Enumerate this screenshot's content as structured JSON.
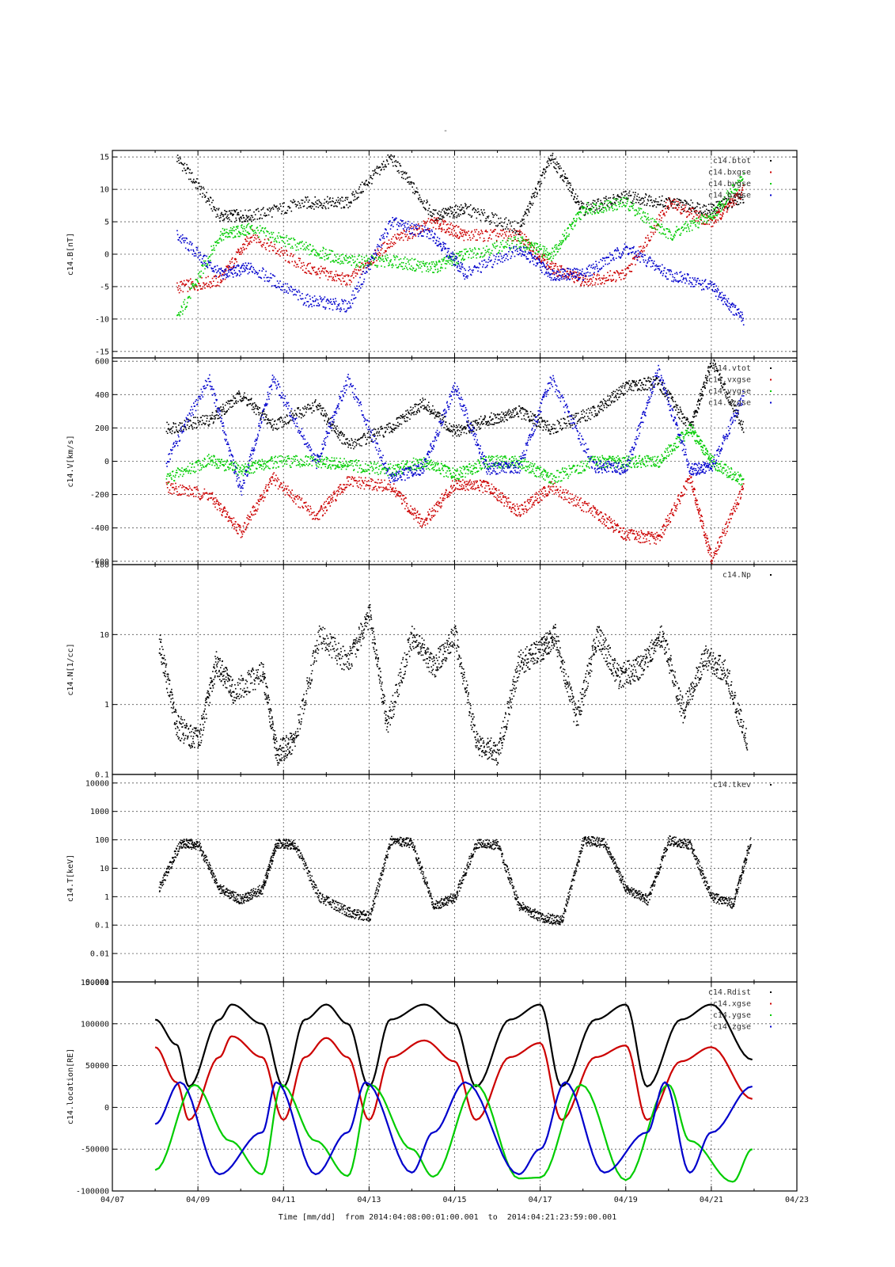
{
  "figure": {
    "top_mark": "-",
    "xlabel": "Time [mm/dd]  from 2014:04:08:00:01:00.001  to  2014:04:21:23:59:00.001"
  },
  "colors": {
    "black": "#000000",
    "red": "#cc0000",
    "green": "#00cc00",
    "blue": "#0000cc"
  },
  "chart_data": [
    {
      "type": "scatter",
      "ylabel": "c14.B[nT]",
      "ylim": [
        -16,
        16
      ],
      "yticks": [
        15,
        10,
        5,
        0,
        -5,
        -10,
        -15
      ],
      "xlim": [
        "04/07",
        "04/23"
      ],
      "xtick_labels": [],
      "legend": "top-right",
      "series": [
        {
          "name": "c14.btot",
          "color": "#000000",
          "x": [
            "04/08 12:00",
            "04/09 12:00",
            "04/10 06:00",
            "04/11 12:00",
            "04/12 12:00",
            "04/13 12:00",
            "04/14 12:00",
            "04/15 06:00",
            "04/16 12:00",
            "04/17 06:00",
            "04/18 00:00",
            "04/19 00:00",
            "04/20 00:00",
            "04/21 00:00",
            "04/21 18:00"
          ],
          "y": [
            15,
            6,
            6,
            8,
            8,
            15,
            6,
            7,
            4,
            15,
            7,
            9,
            8,
            7,
            9
          ]
        },
        {
          "name": "c14.bxgse",
          "color": "#cc0000",
          "x": [
            "04/08 12:00",
            "04/09 12:00",
            "04/10 06:00",
            "04/11 12:00",
            "04/12 12:00",
            "04/13 12:00",
            "04/14 12:00",
            "04/15 06:00",
            "04/16 12:00",
            "04/17 06:00",
            "04/18 00:00",
            "04/19 00:00",
            "04/20 00:00",
            "04/21 00:00",
            "04/21 18:00"
          ],
          "y": [
            -5,
            -4,
            3,
            -2,
            -4,
            2,
            5,
            3,
            3,
            -2,
            -4,
            -3,
            8,
            5,
            10
          ]
        },
        {
          "name": "c14.bygse",
          "color": "#00cc00",
          "x": [
            "04/08 12:00",
            "04/09 12:00",
            "04/10 06:00",
            "04/11 12:00",
            "04/12 12:00",
            "04/13 12:00",
            "04/14 12:00",
            "04/15 06:00",
            "04/16 12:00",
            "04/17 06:00",
            "04/18 00:00",
            "04/19 00:00",
            "04/20 00:00",
            "04/21 00:00",
            "04/21 18:00"
          ],
          "y": [
            -10,
            3,
            4,
            1,
            -1,
            -1,
            -2,
            0,
            2,
            0,
            7,
            8,
            3,
            6,
            12
          ]
        },
        {
          "name": "c14.bzgse",
          "color": "#0000cc",
          "x": [
            "04/08 12:00",
            "04/09 12:00",
            "04/10 06:00",
            "04/11 12:00",
            "04/12 12:00",
            "04/13 12:00",
            "04/14 12:00",
            "04/15 06:00",
            "04/16 12:00",
            "04/17 06:00",
            "04/18 00:00",
            "04/19 00:00",
            "04/20 00:00",
            "04/21 00:00",
            "04/21 18:00"
          ],
          "y": [
            3,
            -3,
            -2,
            -7,
            -8,
            5,
            3,
            -3,
            1,
            -3,
            -3,
            1,
            -3,
            -5,
            -10
          ]
        }
      ]
    },
    {
      "type": "scatter",
      "ylabel": "c14.V[km/s]",
      "ylim": [
        -620,
        620
      ],
      "yticks": [
        600,
        400,
        200,
        0,
        -200,
        -400,
        -600
      ],
      "xlim": [
        "04/07",
        "04/23"
      ],
      "xtick_labels": [],
      "legend": "top-right",
      "series": [
        {
          "name": "c14.vtot",
          "color": "#000000",
          "x": [
            "04/08 06:00",
            "04/09 06:00",
            "04/10 00:00",
            "04/10 18:00",
            "04/11 18:00",
            "04/12 12:00",
            "04/13 12:00",
            "04/14 06:00",
            "04/15 00:00",
            "04/15 18:00",
            "04/16 12:00",
            "04/17 06:00",
            "04/18 06:00",
            "04/19 00:00",
            "04/19 18:00",
            "04/20 12:00",
            "04/21 00:00",
            "04/21 18:00"
          ],
          "y": [
            200,
            250,
            400,
            220,
            340,
            100,
            200,
            350,
            180,
            250,
            300,
            200,
            300,
            450,
            480,
            200,
            600,
            200
          ]
        },
        {
          "name": "c14.vxgse",
          "color": "#cc0000",
          "x": [
            "04/08 06:00",
            "04/09 06:00",
            "04/10 00:00",
            "04/10 18:00",
            "04/11 18:00",
            "04/12 12:00",
            "04/13 12:00",
            "04/14 06:00",
            "04/15 00:00",
            "04/15 18:00",
            "04/16 12:00",
            "04/17 06:00",
            "04/18 06:00",
            "04/19 00:00",
            "04/19 18:00",
            "04/20 12:00",
            "04/21 00:00",
            "04/21 18:00"
          ],
          "y": [
            -150,
            -200,
            -420,
            -100,
            -330,
            -120,
            -150,
            -370,
            -130,
            -150,
            -300,
            -150,
            -300,
            -440,
            -460,
            -100,
            -590,
            -150
          ]
        },
        {
          "name": "c14.vygse",
          "color": "#00cc00",
          "x": [
            "04/08 06:00",
            "04/09 06:00",
            "04/10 00:00",
            "04/10 18:00",
            "04/11 18:00",
            "04/12 12:00",
            "04/13 12:00",
            "04/14 06:00",
            "04/15 00:00",
            "04/15 18:00",
            "04/16 12:00",
            "04/17 06:00",
            "04/18 06:00",
            "04/19 00:00",
            "04/19 18:00",
            "04/20 12:00",
            "04/21 00:00",
            "04/21 18:00"
          ],
          "y": [
            -100,
            10,
            -50,
            0,
            0,
            -20,
            -50,
            0,
            -80,
            0,
            0,
            -100,
            0,
            0,
            0,
            200,
            0,
            -120
          ]
        },
        {
          "name": "c14.vzgse",
          "color": "#0000cc",
          "x": [
            "04/08 06:00",
            "04/09 06:00",
            "04/10 00:00",
            "04/10 18:00",
            "04/11 18:00",
            "04/12 12:00",
            "04/13 12:00",
            "04/14 06:00",
            "04/15 00:00",
            "04/15 18:00",
            "04/16 12:00",
            "04/17 06:00",
            "04/18 06:00",
            "04/19 00:00",
            "04/19 18:00",
            "04/20 12:00",
            "04/21 00:00",
            "04/21 18:00"
          ],
          "y": [
            0,
            500,
            -180,
            500,
            -10,
            500,
            -100,
            -40,
            450,
            -40,
            -30,
            500,
            -30,
            -40,
            550,
            -50,
            -30,
            400
          ]
        }
      ]
    },
    {
      "type": "scatter",
      "ylabel": "c14.N[1/cc]",
      "yscale": "log",
      "ylim": [
        0.1,
        100
      ],
      "yticks": [
        100,
        10,
        1,
        0.1
      ],
      "xlim": [
        "04/07",
        "04/23"
      ],
      "xtick_labels": [],
      "legend": "top-right",
      "series": [
        {
          "name": "c14.Np",
          "color": "#000000",
          "x": [
            "04/08 02:00",
            "04/08 12:00",
            "04/09 00:00",
            "04/09 10:00",
            "04/09 20:00",
            "04/10 12:00",
            "04/10 20:00",
            "04/11 06:00",
            "04/11 20:00",
            "04/12 12:00",
            "04/13 00:00",
            "04/13 10:00",
            "04/14 00:00",
            "04/14 12:00",
            "04/15 00:00",
            "04/15 12:00",
            "04/16 00:00",
            "04/16 12:00",
            "04/17 00:00",
            "04/17 08:00",
            "04/17 20:00",
            "04/18 08:00",
            "04/18 20:00",
            "04/19 08:00",
            "04/19 20:00",
            "04/20 08:00",
            "04/20 20:00",
            "04/21 08:00",
            "04/21 20:00"
          ],
          "y": [
            8,
            0.5,
            0.3,
            4,
            1.5,
            3,
            0.2,
            0.3,
            10,
            4,
            20,
            0.5,
            10,
            3.5,
            10,
            0.3,
            0.2,
            4,
            6,
            10,
            0.6,
            10,
            2.5,
            3.5,
            10,
            0.8,
            5,
            3,
            0.3
          ]
        }
      ]
    },
    {
      "type": "scatter",
      "ylabel": "c14.T[keV]",
      "yscale": "log",
      "ylim": [
        0.001,
        20000
      ],
      "yticks": [
        10000,
        1000,
        100,
        10,
        1,
        0.1,
        0.01,
        0.001
      ],
      "xlim": [
        "04/07",
        "04/23"
      ],
      "xtick_labels": [],
      "legend": "top-right",
      "series": [
        {
          "name": "c14.tkev",
          "color": "#000000",
          "x": [
            "04/08 02:00",
            "04/08 14:00",
            "04/09 00:00",
            "04/09 12:00",
            "04/10 00:00",
            "04/10 12:00",
            "04/10 20:00",
            "04/11 06:00",
            "04/11 20:00",
            "04/12 12:00",
            "04/13 00:00",
            "04/13 12:00",
            "04/14 00:00",
            "04/14 12:00",
            "04/15 00:00",
            "04/15 12:00",
            "04/16 00:00",
            "04/16 12:00",
            "04/17 00:00",
            "04/17 12:00",
            "04/18 00:00",
            "04/18 12:00",
            "04/19 00:00",
            "04/19 12:00",
            "04/20 00:00",
            "04/20 12:00",
            "04/21 00:00",
            "04/21 12:00",
            "04/21 22:00"
          ],
          "y": [
            2,
            80,
            70,
            2,
            0.8,
            2,
            80,
            70,
            1,
            0.3,
            0.2,
            100,
            80,
            0.5,
            1,
            80,
            70,
            0.5,
            0.2,
            0.15,
            100,
            80,
            2,
            0.8,
            100,
            70,
            1,
            0.6,
            100
          ]
        }
      ]
    },
    {
      "type": "line",
      "ylabel": "c14.location[RE]",
      "ylim": [
        -100000,
        150000
      ],
      "yticks": [
        100000,
        50000,
        0,
        -50000,
        -100000
      ],
      "top_tick_label": "150000",
      "xlim": [
        "04/07",
        "04/23"
      ],
      "xtick_labels": [
        "04/07",
        "04/09",
        "04/11",
        "04/13",
        "04/15",
        "04/17",
        "04/19",
        "04/21",
        "04/23"
      ],
      "legend": "top-right",
      "series": [
        {
          "name": "c14.Rdist",
          "color": "#000000",
          "x": [
            "04/08 00:00",
            "04/08 12:00",
            "04/08 19:00",
            "04/09 12:00",
            "04/09 19:00",
            "04/10 12:00",
            "04/11 00:00",
            "04/11 12:00",
            "04/12 00:00",
            "04/12 12:00",
            "04/13 00:00",
            "04/13 12:00",
            "04/14 07:00",
            "04/15 00:00",
            "04/15 12:00",
            "04/16 07:00",
            "04/17 00:00",
            "04/17 12:00",
            "04/18 07:00",
            "04/19 00:00",
            "04/19 12:00",
            "04/20 07:00",
            "04/21 00:00",
            "04/21 23:00"
          ],
          "y": [
            105000,
            75000,
            25000,
            105000,
            123000,
            100000,
            25000,
            105000,
            123000,
            100000,
            25000,
            105000,
            123000,
            100000,
            25000,
            105000,
            123000,
            25000,
            105000,
            123000,
            25000,
            105000,
            123000,
            57000
          ]
        },
        {
          "name": "c14.xgse",
          "color": "#cc0000",
          "x": [
            "04/08 00:00",
            "04/08 12:00",
            "04/08 19:00",
            "04/09 12:00",
            "04/09 19:00",
            "04/10 12:00",
            "04/11 00:00",
            "04/11 12:00",
            "04/12 00:00",
            "04/12 12:00",
            "04/13 00:00",
            "04/13 12:00",
            "04/14 07:00",
            "04/15 00:00",
            "04/15 12:00",
            "04/16 07:00",
            "04/17 00:00",
            "04/17 12:00",
            "04/18 07:00",
            "04/19 00:00",
            "04/19 12:00",
            "04/20 07:00",
            "04/21 00:00",
            "04/21 23:00"
          ],
          "y": [
            72000,
            30000,
            -15000,
            60000,
            85000,
            60000,
            -15000,
            60000,
            83000,
            60000,
            -15000,
            60000,
            80000,
            55000,
            -15000,
            60000,
            77000,
            -15000,
            60000,
            74000,
            -15000,
            55000,
            72000,
            10000
          ]
        },
        {
          "name": "c14.ygse",
          "color": "#00cc00",
          "x": [
            "04/08 00:00",
            "04/08 22:00",
            "04/09 18:00",
            "04/10 12:00",
            "04/10 23:00",
            "04/11 18:00",
            "04/12 12:00",
            "04/13 01:00",
            "04/14 00:00",
            "04/14 12:00",
            "04/15 12:00",
            "04/16 12:00",
            "04/17 00:00",
            "04/17 23:00",
            "04/19 00:00",
            "04/20 00:00",
            "04/20 12:00",
            "04/21 12:00",
            "04/21 23:00"
          ],
          "y": [
            -75000,
            27000,
            -40000,
            -80000,
            27000,
            -40000,
            -82000,
            27000,
            -50000,
            -83000,
            27000,
            -85000,
            -84000,
            27000,
            -87000,
            27000,
            -40000,
            -89000,
            -50000
          ]
        },
        {
          "name": "c14.zgse",
          "color": "#0000cc",
          "x": [
            "04/08 00:00",
            "04/08 14:00",
            "04/09 12:00",
            "04/10 12:00",
            "04/10 20:00",
            "04/11 18:00",
            "04/12 12:00",
            "04/12 22:00",
            "04/14 00:00",
            "04/14 12:00",
            "04/15 06:00",
            "04/16 12:00",
            "04/17 00:00",
            "04/17 14:00",
            "04/18 12:00",
            "04/19 12:00",
            "04/19 22:00",
            "04/20 12:00",
            "04/21 00:00",
            "04/21 23:00"
          ],
          "y": [
            -20000,
            30000,
            -80000,
            -30000,
            30000,
            -80000,
            -30000,
            30000,
            -78000,
            -30000,
            30000,
            -80000,
            -50000,
            30000,
            -78000,
            -30000,
            30000,
            -78000,
            -30000,
            25000
          ]
        }
      ]
    }
  ]
}
